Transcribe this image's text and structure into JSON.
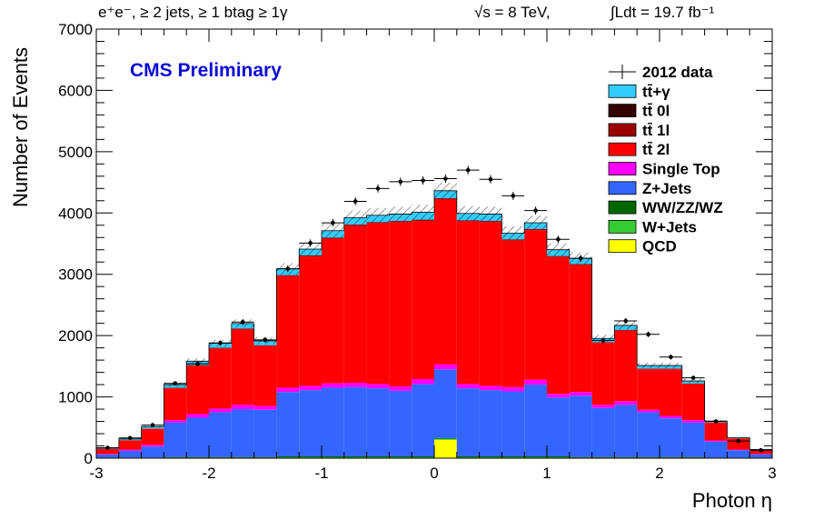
{
  "header": {
    "selection": "e⁺e⁻, ≥ 2 jets, ≥ 1 btag ≥ 1γ",
    "energy": "√s = 8 TeV,",
    "lumi": "∫Ldt = 19.7 fb⁻¹"
  },
  "cms_label": "CMS Preliminary",
  "chart_data": {
    "type": "bar",
    "stacked": true,
    "histogram": true,
    "xlabel": "Photon η",
    "ylabel": "Number of Events",
    "xlim": [
      -3,
      3
    ],
    "ylim": [
      0,
      7000
    ],
    "x_ticks": [
      -3,
      -2,
      -1,
      0,
      1,
      2,
      3
    ],
    "y_ticks": [
      0,
      1000,
      2000,
      3000,
      4000,
      5000,
      6000,
      7000
    ],
    "grid": false,
    "legend_position": "top-right",
    "bin_edges": [
      -3.0,
      -2.8,
      -2.6,
      -2.4,
      -2.2,
      -2.0,
      -1.8,
      -1.6,
      -1.4,
      -1.2,
      -1.0,
      -0.8,
      -0.6,
      -0.4,
      -0.2,
      0.0,
      0.2,
      0.4,
      0.6,
      0.8,
      1.0,
      1.2,
      1.4,
      1.6,
      1.8,
      2.0,
      2.2,
      2.4,
      2.6,
      2.8,
      3.0
    ],
    "series": [
      {
        "name": "QCD",
        "color": "#ffff00",
        "values": [
          0,
          0,
          0,
          0,
          0,
          0,
          0,
          0,
          0,
          0,
          0,
          0,
          0,
          0,
          0,
          300,
          0,
          0,
          0,
          0,
          0,
          0,
          0,
          0,
          0,
          0,
          0,
          0,
          0,
          0
        ]
      },
      {
        "name": "W+Jets",
        "color": "#33cc33",
        "values": [
          5,
          5,
          5,
          10,
          10,
          10,
          10,
          10,
          15,
          15,
          15,
          15,
          15,
          15,
          15,
          15,
          15,
          15,
          15,
          15,
          15,
          10,
          10,
          10,
          10,
          10,
          10,
          5,
          5,
          5
        ]
      },
      {
        "name": "WW/ZZ/WZ",
        "color": "#006600",
        "values": [
          5,
          5,
          5,
          10,
          10,
          10,
          10,
          10,
          15,
          15,
          15,
          15,
          15,
          15,
          15,
          15,
          15,
          15,
          15,
          15,
          15,
          10,
          10,
          10,
          10,
          10,
          10,
          5,
          5,
          5
        ]
      },
      {
        "name": "Z+Jets",
        "color": "#3366ff",
        "values": [
          50,
          110,
          180,
          560,
          640,
          730,
          780,
          770,
          1050,
          1080,
          1120,
          1130,
          1110,
          1070,
          1180,
          1120,
          1110,
          1080,
          1060,
          1170,
          960,
          1000,
          800,
          850,
          730,
          630,
          560,
          260,
          120,
          50
        ]
      },
      {
        "name": "Single Top",
        "color": "#ff00ff",
        "values": [
          10,
          20,
          30,
          40,
          60,
          60,
          70,
          60,
          70,
          70,
          70,
          70,
          70,
          70,
          80,
          80,
          70,
          70,
          70,
          80,
          60,
          60,
          50,
          60,
          40,
          40,
          40,
          20,
          10,
          10
        ]
      },
      {
        "name": "tt̄ 2l",
        "color": "#ff0000",
        "values": [
          80,
          150,
          260,
          520,
          790,
          980,
          1230,
          980,
          1820,
          2110,
          2360,
          2560,
          2620,
          2680,
          2580,
          2690,
          2650,
          2670,
          2390,
          2440,
          2230,
          2070,
          1010,
          1150,
          660,
          760,
          590,
          290,
          180,
          60
        ]
      },
      {
        "name": "tt̄ 1l",
        "color": "#990000",
        "values": [
          2,
          3,
          4,
          8,
          10,
          12,
          14,
          12,
          16,
          18,
          18,
          20,
          20,
          20,
          20,
          20,
          20,
          20,
          18,
          18,
          18,
          16,
          12,
          14,
          10,
          10,
          8,
          4,
          3,
          2
        ]
      },
      {
        "name": "tt̄ 0l",
        "color": "#330000",
        "values": [
          1,
          1,
          1,
          2,
          2,
          2,
          3,
          2,
          3,
          3,
          3,
          3,
          3,
          3,
          3,
          3,
          3,
          3,
          3,
          3,
          3,
          3,
          2,
          2,
          2,
          2,
          2,
          1,
          1,
          1
        ]
      },
      {
        "name": "tt̄+γ",
        "color": "#33ccff",
        "values": [
          10,
          20,
          30,
          50,
          60,
          70,
          80,
          70,
          100,
          100,
          110,
          110,
          110,
          110,
          120,
          120,
          110,
          110,
          100,
          100,
          100,
          90,
          60,
          70,
          50,
          50,
          40,
          20,
          10,
          10
        ]
      }
    ],
    "data": {
      "name": "2012 data",
      "values": [
        170,
        330,
        540,
        1220,
        1540,
        1880,
        2220,
        1930,
        3090,
        3510,
        3840,
        4190,
        4400,
        4510,
        4530,
        4560,
        4700,
        4550,
        4280,
        4040,
        3570,
        3260,
        1920,
        2240,
        2020,
        1650,
        1310,
        600,
        280,
        130
      ]
    },
    "legend": [
      {
        "name": "2012 data",
        "type": "data"
      },
      {
        "name": "tt̄+γ",
        "color": "#33ccff"
      },
      {
        "name": "tt̄ 0l",
        "color": "#330000"
      },
      {
        "name": "tt̄ 1l",
        "color": "#990000"
      },
      {
        "name": "tt̄ 2l",
        "color": "#ff0000"
      },
      {
        "name": "Single Top",
        "color": "#ff00ff"
      },
      {
        "name": "Z+Jets",
        "color": "#3366ff"
      },
      {
        "name": "WW/ZZ/WZ",
        "color": "#006600"
      },
      {
        "name": "W+Jets",
        "color": "#33cc33"
      },
      {
        "name": "QCD",
        "color": "#ffff00"
      }
    ]
  }
}
